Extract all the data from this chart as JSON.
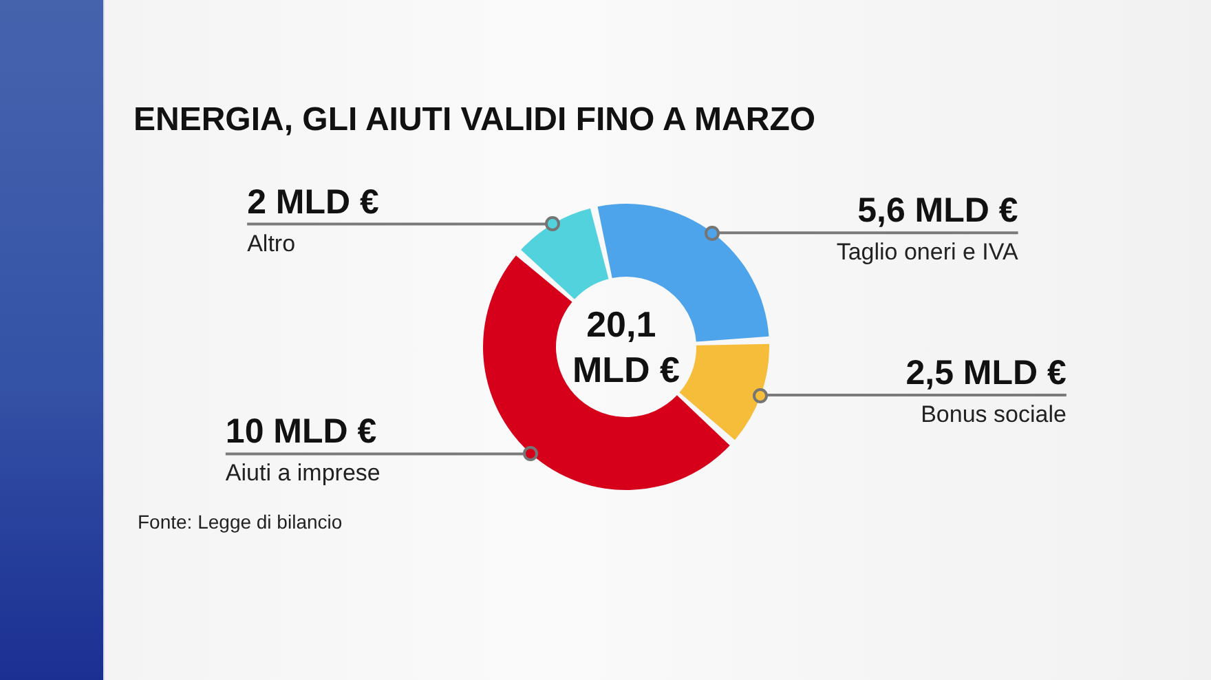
{
  "chart_data": {
    "type": "donut",
    "title": "ENERGIA, GLI AIUTI VALIDI FINO A MARZO",
    "categories": [
      "Taglio oneri e IVA",
      "Bonus sociale",
      "Aiuti a imprese",
      "Altro"
    ],
    "values": [
      5.6,
      2.5,
      10,
      2
    ],
    "colors": [
      "#4ea4ea",
      "#f6bd3b",
      "#d6001b",
      "#52d2dd"
    ],
    "value_labels": [
      "5,6 MLD €",
      "2,5 MLD €",
      "10 MLD €",
      "2 MLD €"
    ],
    "annotations": [
      "20,1 MLD €",
      "Fonte: Legge di bilancio"
    ]
  }
}
